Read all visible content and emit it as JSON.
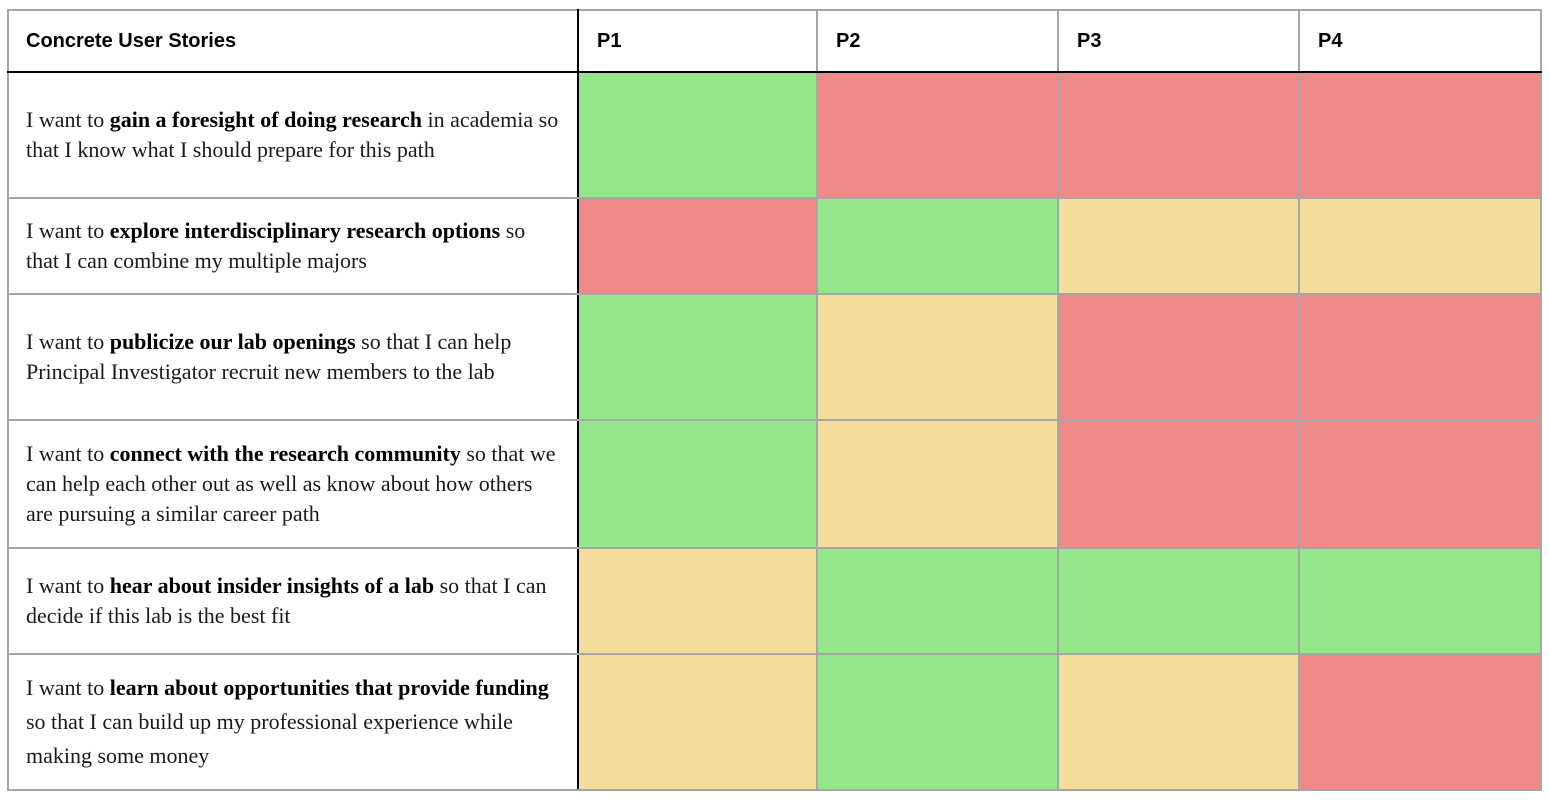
{
  "headers": [
    "Concrete User Stories",
    "P1",
    "P2",
    "P3",
    "P4"
  ],
  "colors": {
    "green": "#93e78a",
    "red": "#f08a89",
    "yellow": "#f4dc9b"
  },
  "rows": [
    {
      "parts": [
        {
          "text": "I want to ",
          "bold": false
        },
        {
          "text": "gain a foresight of doing research",
          "bold": true
        },
        {
          "text": " in academia so that I know what I should prepare for this path",
          "bold": false
        }
      ],
      "ratings": [
        "green",
        "red",
        "red",
        "red"
      ]
    },
    {
      "parts": [
        {
          "text": "I want to ",
          "bold": false
        },
        {
          "text": "explore interdisciplinary research options",
          "bold": true
        },
        {
          "text": " so that I can combine my multiple majors",
          "bold": false
        }
      ],
      "ratings": [
        "red",
        "green",
        "yellow",
        "yellow"
      ]
    },
    {
      "parts": [
        {
          "text": "I want to ",
          "bold": false
        },
        {
          "text": "publicize our lab openings",
          "bold": true
        },
        {
          "text": " so that I can help Principal Investigator recruit new members to the lab",
          "bold": false
        }
      ],
      "ratings": [
        "green",
        "yellow",
        "red",
        "red"
      ]
    },
    {
      "parts": [
        {
          "text": "I want to ",
          "bold": false
        },
        {
          "text": "connect with  the research community",
          "bold": true
        },
        {
          "text": " so that we can help each other out as well as know about how others are pursuing a similar career path",
          "bold": false
        }
      ],
      "ratings": [
        "green",
        "yellow",
        "red",
        "red"
      ]
    },
    {
      "parts": [
        {
          "text": "I want to ",
          "bold": false
        },
        {
          "text": "hear about  insider insights of  a lab",
          "bold": true
        },
        {
          "text": " so that I can decide if this lab is the best fit",
          "bold": false
        }
      ],
      "ratings": [
        "yellow",
        "green",
        "green",
        "green"
      ]
    },
    {
      "parts": [
        {
          "text": "I  want to ",
          "bold": false
        },
        {
          "text": "learn about opportunities that provide funding",
          "bold": true
        },
        {
          "text": " so that I can build up my professional experience while making some money",
          "bold": false
        }
      ],
      "ratings": [
        "yellow",
        "green",
        "yellow",
        "red"
      ]
    }
  ]
}
